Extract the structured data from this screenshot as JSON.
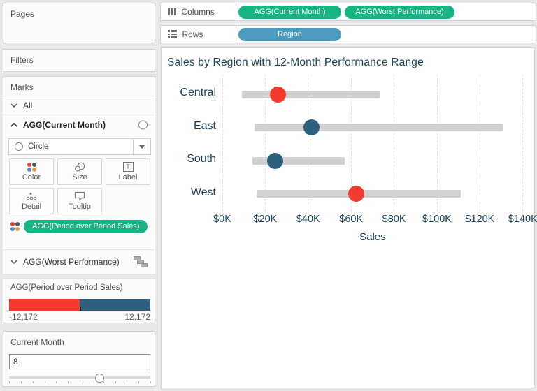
{
  "colors": {
    "pill_green": "#17B586",
    "pill_blue": "#4A9BBC",
    "title_text": "#1D4456",
    "negative_red": "#F33B2F",
    "positive_blue": "#2E5F7D"
  },
  "shelves": {
    "columns": {
      "label": "Columns",
      "pills": [
        "AGG(Current Month)",
        "AGG(Worst Performance)"
      ]
    },
    "rows": {
      "label": "Rows",
      "pills": [
        "Region"
      ]
    }
  },
  "sidebar": {
    "pages_label": "Pages",
    "filters_label": "Filters",
    "marks": {
      "label": "Marks",
      "all_label": "All",
      "current_month_label": "AGG(Current Month)",
      "mark_type": "Circle",
      "buttons": [
        {
          "label": "Color"
        },
        {
          "label": "Size"
        },
        {
          "label": "Label"
        },
        {
          "label": "Detail"
        },
        {
          "label": "Tooltip"
        }
      ],
      "color_pill": "AGG(Period over Period Sales)",
      "worst_performance_label": "AGG(Worst Performance)"
    },
    "color_legend": {
      "title": "AGG(Period over Period Sales)",
      "min": "-12,172",
      "max": "12,172",
      "negative_color": "#F33B2F",
      "positive_color": "#2E5F7D"
    },
    "parameter": {
      "title": "Current Month",
      "value": "8"
    }
  },
  "chart_data": {
    "type": "bar",
    "subtype": "barbell-range-with-dots",
    "title": "Sales by Region with 12-Month Performance Range",
    "xlabel": "Sales",
    "categories": [
      "Central",
      "East",
      "South",
      "West"
    ],
    "series": [
      {
        "name": "12-month sales range",
        "low": [
          9000,
          15000,
          14000,
          16000
        ],
        "high": [
          73500,
          131000,
          57000,
          111000
        ]
      },
      {
        "name": "AGG(Current Month) sales",
        "values": [
          26000,
          41500,
          24500,
          62500
        ]
      }
    ],
    "point_colors": [
      "#F33B2F",
      "#2E5F7D",
      "#2E5F7D",
      "#F33B2F"
    ],
    "point_color_meaning": "red = negative period-over-period sales, blue = positive",
    "bar_color": "#D1D1D1",
    "x_ticks": [
      "$0K",
      "$20K",
      "$40K",
      "$60K",
      "$80K",
      "$100K",
      "$120K",
      "$140K"
    ],
    "x_tick_values": [
      0,
      20000,
      40000,
      60000,
      80000,
      100000,
      120000,
      140000
    ],
    "xlim": [
      0,
      140000
    ],
    "grid": "dashed vertical gridlines"
  }
}
